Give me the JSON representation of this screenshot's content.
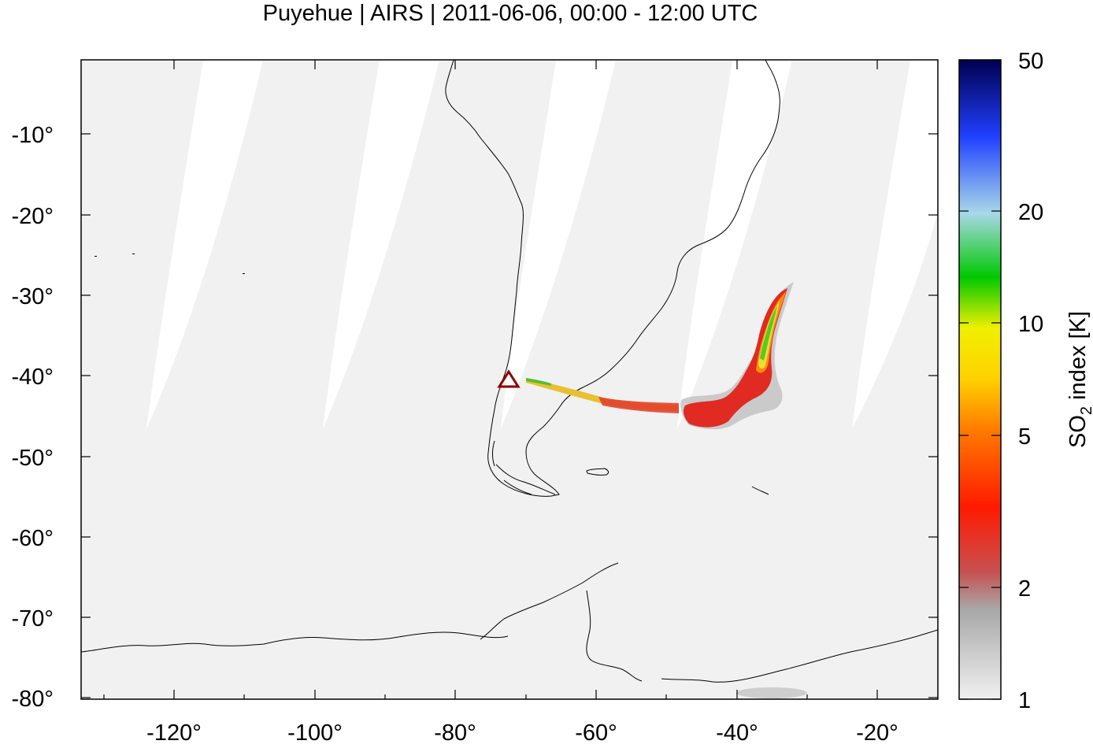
{
  "title": "Puyehue | AIRS | 2011-06-06, 00:00 - 12:00 UTC",
  "map": {
    "lon_range": [
      -135,
      -15
    ],
    "lat_range": [
      -80,
      0
    ],
    "lon_tick_labels": [
      "-120°",
      "-100°",
      "-80°",
      "-60°",
      "-40°",
      "-20°"
    ],
    "lat_tick_labels": [
      "-10°",
      "-20°",
      "-30°",
      "-40°",
      "-50°",
      "-60°",
      "-70°",
      "-80°"
    ],
    "background_color": "#f1f1f1",
    "swath_gap_color": "#ffffff",
    "coastline_color": "#000000",
    "volcano_marker": {
      "name": "Puyehue",
      "lon": -72.1,
      "lat": -40.6,
      "color": "#8b0000",
      "icon": "triangle-outline-icon"
    }
  },
  "colorbar": {
    "label_main": "SO",
    "label_sub": "2",
    "label_rest": " index [K]",
    "scale": "log",
    "min": 1,
    "max": 50,
    "tick_labels": [
      "50",
      "20",
      "10",
      "5",
      "2",
      "1"
    ],
    "colors": [
      "#f0f0f0",
      "#a8a8a8",
      "#c85050",
      "#ff1a00",
      "#ff7a00",
      "#ffd000",
      "#f0f000",
      "#00c800",
      "#a8d8e8",
      "#2040ff",
      "#000050"
    ]
  },
  "plume": {
    "description_color_core": "#f0e040",
    "edge_color": "#e03030"
  }
}
